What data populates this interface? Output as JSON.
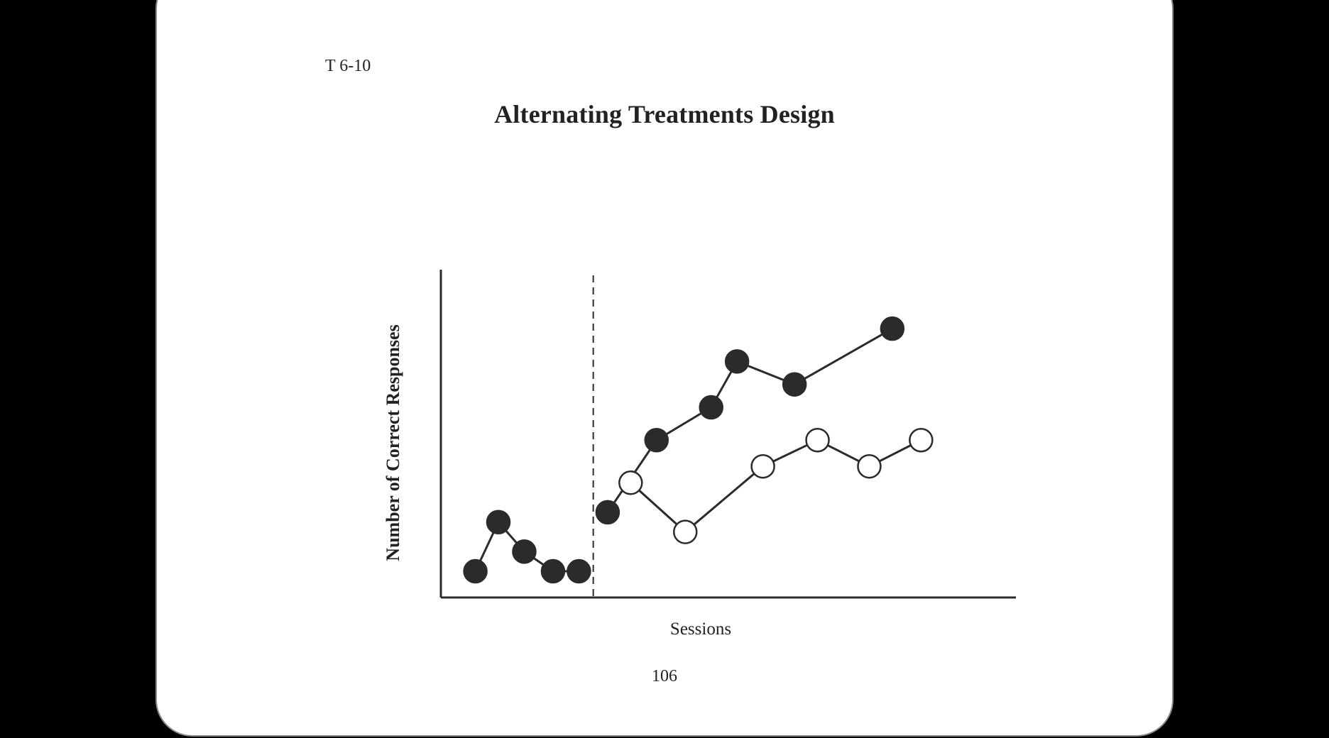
{
  "slide": {
    "page_id": "T 6-10",
    "title": "Alternating Treatments Design",
    "page_number": "106"
  },
  "chart_data": {
    "type": "line",
    "title": "Alternating Treatments Design",
    "xlabel": "Sessions",
    "ylabel": "Number of Correct Responses",
    "xlim": [
      0,
      20
    ],
    "ylim": [
      0,
      10
    ],
    "grid": false,
    "legend": "none",
    "phase_change_x": 5.3,
    "phase_change_style": "dashed",
    "series": [
      {
        "marker": "filled-circle",
        "color": "#2b2b2b",
        "segments": [
          [
            {
              "x": 1.2,
              "y": 0.8
            },
            {
              "x": 2.0,
              "y": 2.3
            },
            {
              "x": 2.9,
              "y": 1.4
            },
            {
              "x": 3.9,
              "y": 0.8
            },
            {
              "x": 4.8,
              "y": 0.8
            }
          ],
          [
            {
              "x": 5.8,
              "y": 2.6
            },
            {
              "x": 7.5,
              "y": 4.8
            },
            {
              "x": 9.4,
              "y": 5.8
            },
            {
              "x": 10.3,
              "y": 7.2
            },
            {
              "x": 12.3,
              "y": 6.5
            },
            {
              "x": 15.7,
              "y": 8.2
            }
          ]
        ]
      },
      {
        "marker": "open-circle",
        "color": "#2b2b2b",
        "segments": [
          [
            {
              "x": 6.6,
              "y": 3.5
            },
            {
              "x": 8.5,
              "y": 2.0
            },
            {
              "x": 11.2,
              "y": 4.0
            },
            {
              "x": 13.1,
              "y": 4.8
            },
            {
              "x": 14.9,
              "y": 4.0
            },
            {
              "x": 16.7,
              "y": 4.8
            }
          ]
        ]
      }
    ]
  }
}
